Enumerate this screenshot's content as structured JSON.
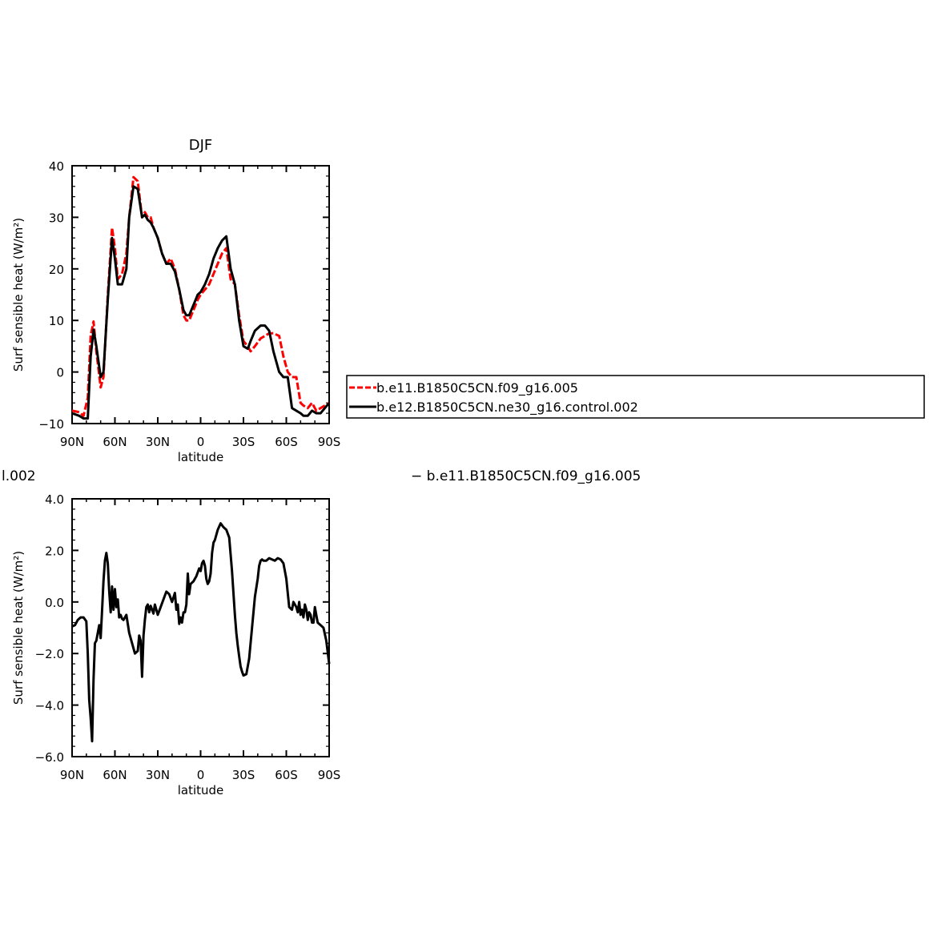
{
  "chart_data": [
    {
      "type": "line",
      "title": "DJF",
      "xlabel": "latitude",
      "ylabel": "Surf sensible heat (W/m²)",
      "xlim": [
        90,
        -90
      ],
      "ylim": [
        -10,
        40
      ],
      "xticks": [
        90,
        60,
        30,
        0,
        -30,
        -60,
        -90
      ],
      "xtick_labels": [
        "90N",
        "60N",
        "30N",
        "0",
        "30S",
        "60S",
        "90S"
      ],
      "yticks": [
        -10,
        0,
        10,
        20,
        30,
        40
      ],
      "ytick_labels": [
        "−10",
        "0",
        "10",
        "20",
        "30",
        "40"
      ],
      "legend": "right",
      "series": [
        {
          "name": "b.e11.B1850C5CN.f09_g16.005",
          "color": "#ff0000",
          "dashed": true,
          "x": [
            90,
            85,
            82,
            79,
            77,
            75,
            73,
            70,
            68,
            65,
            62,
            60,
            58,
            55,
            52,
            50,
            47,
            44,
            41,
            39,
            37,
            35,
            33,
            30,
            27,
            24,
            21,
            18,
            15,
            12,
            10,
            8,
            5,
            2,
            0,
            -3,
            -6,
            -9,
            -12,
            -15,
            -18,
            -21,
            -24,
            -27,
            -30,
            -33,
            -35,
            -38,
            -42,
            -45,
            -48,
            -51,
            -55,
            -58,
            -61,
            -64,
            -67,
            -70,
            -72,
            -75,
            -78,
            -81,
            -84,
            -87,
            -90
          ],
          "y": [
            -7.5,
            -7.8,
            -8.5,
            -5,
            7,
            9.8,
            4,
            -3,
            -1,
            15,
            28,
            24,
            18,
            19,
            23,
            30,
            37.8,
            37,
            30,
            31,
            30,
            30,
            28,
            26,
            23,
            21,
            22,
            20,
            16,
            11,
            10,
            10,
            12,
            14,
            15,
            16,
            17,
            19,
            21,
            23,
            24,
            18,
            17,
            11,
            6,
            5,
            4,
            5,
            6.5,
            7,
            7.5,
            7.5,
            7,
            3,
            0,
            -1,
            -1,
            -6,
            -6.5,
            -7,
            -6,
            -7.5,
            -7,
            -6.5,
            -6
          ]
        },
        {
          "name": "b.e12.B1850C5CN.ne30_g16.control.002",
          "color": "#000000",
          "dashed": false,
          "x": [
            90,
            85,
            82,
            79,
            77,
            75,
            73,
            70,
            68,
            65,
            62,
            60,
            58,
            55,
            52,
            50,
            47,
            44,
            41,
            39,
            37,
            35,
            33,
            30,
            27,
            24,
            21,
            18,
            15,
            12,
            10,
            8,
            5,
            2,
            0,
            -3,
            -6,
            -9,
            -12,
            -15,
            -18,
            -21,
            -24,
            -27,
            -30,
            -33,
            -35,
            -38,
            -42,
            -45,
            -48,
            -51,
            -55,
            -58,
            -61,
            -64,
            -67,
            -70,
            -72,
            -75,
            -78,
            -81,
            -84,
            -87,
            -90
          ],
          "y": [
            -8,
            -8.5,
            -9,
            -9,
            3,
            8.2,
            5,
            -1,
            0,
            14,
            26,
            22,
            17,
            17,
            20,
            30,
            36,
            35.5,
            30,
            30.5,
            29.5,
            29,
            28,
            26,
            23,
            21,
            21,
            19.5,
            16,
            12,
            11,
            11,
            13,
            15,
            15.5,
            17,
            19,
            22,
            24,
            25.5,
            26.3,
            20,
            17,
            10,
            5,
            4.5,
            6,
            8,
            9,
            9,
            8,
            4,
            0,
            -1,
            -1,
            -7,
            -7.5,
            -8,
            -8.5,
            -8.5,
            -7.5,
            -8,
            -8,
            -7,
            -6
          ]
        }
      ]
    },
    {
      "type": "line",
      "title": "",
      "xlabel": "latitude",
      "ylabel": "Surf sensible heat (W/m²)",
      "xlim": [
        90,
        -90
      ],
      "ylim": [
        -6,
        4
      ],
      "xticks": [
        90,
        60,
        30,
        0,
        -30,
        -60,
        -90
      ],
      "xtick_labels": [
        "90N",
        "60N",
        "30N",
        "0",
        "30S",
        "60S",
        "90S"
      ],
      "yticks": [
        -6,
        -4,
        -2,
        0,
        2,
        4
      ],
      "ytick_labels": [
        "−6.0",
        "−4.0",
        "−2.0",
        "0.0",
        "2.0",
        "4.0"
      ],
      "series": [
        {
          "color": "#000000",
          "dashed": false,
          "x": [
            90,
            88,
            86,
            84,
            82,
            80,
            79,
            78,
            77,
            76,
            75,
            74,
            73,
            72,
            71,
            70,
            69,
            68,
            67,
            66,
            65,
            64,
            63,
            62,
            61,
            60,
            59,
            58,
            57,
            56,
            55,
            54,
            52,
            50,
            48,
            46,
            44,
            43,
            42,
            41,
            40,
            39,
            38,
            37,
            36,
            35,
            34,
            33,
            32,
            30,
            28,
            26,
            24,
            22,
            20,
            18,
            17,
            16,
            15,
            14,
            13,
            12,
            11,
            10,
            9,
            8,
            7,
            5,
            3,
            1,
            0,
            -1,
            -2,
            -3,
            -4,
            -5,
            -6,
            -7,
            -8,
            -9,
            -10,
            -12,
            -14,
            -16,
            -18,
            -20,
            -22,
            -24,
            -25,
            -26,
            -27,
            -28,
            -29,
            -30,
            -32,
            -34,
            -36,
            -38,
            -40,
            -41,
            -42,
            -43,
            -44,
            -46,
            -48,
            -50,
            -52,
            -54,
            -56,
            -58,
            -60,
            -62,
            -64,
            -65,
            -66,
            -67,
            -68,
            -69,
            -70,
            -71,
            -72,
            -73,
            -74,
            -75,
            -76,
            -77,
            -78,
            -79,
            -80,
            -81,
            -82,
            -84,
            -86,
            -88,
            -90
          ],
          "y": [
            -0.95,
            -0.9,
            -0.7,
            -0.6,
            -0.6,
            -0.75,
            -2,
            -3.8,
            -4.5,
            -5.4,
            -3.0,
            -1.6,
            -1.5,
            -1.2,
            -0.9,
            -1.4,
            -0.3,
            0.8,
            1.6,
            1.9,
            1.5,
            0.4,
            -0.4,
            0.6,
            -0.3,
            0.5,
            -0.2,
            0.1,
            -0.6,
            -0.5,
            -0.65,
            -0.7,
            -0.5,
            -1.2,
            -1.6,
            -2.0,
            -1.9,
            -1.3,
            -1.5,
            -2.9,
            -1.3,
            -0.7,
            -0.2,
            -0.1,
            -0.4,
            -0.15,
            -0.3,
            -0.45,
            -0.1,
            -0.5,
            -0.2,
            0.1,
            0.4,
            0.3,
            0.0,
            0.35,
            -0.3,
            -0.1,
            -0.85,
            -0.6,
            -0.8,
            -0.4,
            -0.4,
            -0.1,
            1.1,
            0.3,
            0.7,
            0.8,
            1.0,
            1.3,
            1.2,
            1.5,
            1.6,
            1.4,
            0.9,
            0.7,
            0.8,
            1.1,
            1.9,
            2.3,
            2.4,
            2.8,
            3.05,
            2.9,
            2.8,
            2.5,
            1.2,
            -0.5,
            -1.2,
            -1.7,
            -2.1,
            -2.5,
            -2.7,
            -2.85,
            -2.8,
            -2.2,
            -1.0,
            0.2,
            0.9,
            1.4,
            1.6,
            1.65,
            1.6,
            1.6,
            1.7,
            1.65,
            1.6,
            1.7,
            1.65,
            1.5,
            0.9,
            -0.2,
            -0.3,
            0.0,
            -0.1,
            -0.2,
            -0.4,
            0.0,
            -0.5,
            -0.3,
            -0.6,
            -0.1,
            -0.3,
            -0.7,
            -0.4,
            -0.5,
            -0.8,
            -0.8,
            -0.2,
            -0.5,
            -0.8,
            -0.9,
            -1.0,
            -1.5,
            -2.4
          ]
        }
      ]
    }
  ],
  "fragments": {
    "left_fragment": "l.002",
    "right_fragment": "− b.e11.B1850C5CN.f09_g16.005"
  }
}
